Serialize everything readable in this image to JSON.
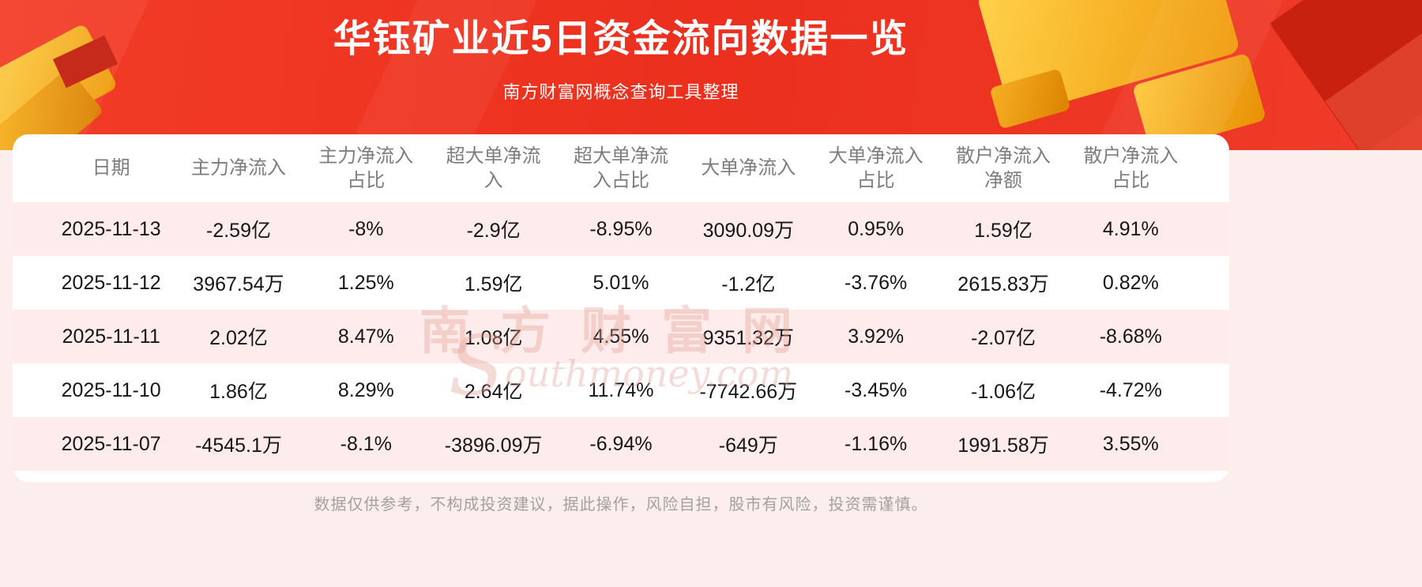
{
  "header": {
    "title": "华钰矿业近5日资金流向数据一览",
    "subtitle": "南方财富网概念查询工具整理"
  },
  "watermark": {
    "initial": "S",
    "cn": "南方财富网",
    "en": "outhmoney.com"
  },
  "table": {
    "headers": [
      "日期",
      "主力净流入",
      "主力净流入占比",
      "超大单净流入",
      "超大单净流入占比",
      "大单净流入",
      "大单净流入占比",
      "散户净流入净额",
      "散户净流入占比"
    ],
    "rows": [
      [
        "2025-11-13",
        "-2.59亿",
        "-8%",
        "-2.9亿",
        "-8.95%",
        "3090.09万",
        "0.95%",
        "1.59亿",
        "4.91%"
      ],
      [
        "2025-11-12",
        "3967.54万",
        "1.25%",
        "1.59亿",
        "5.01%",
        "-1.2亿",
        "-3.76%",
        "2615.83万",
        "0.82%"
      ],
      [
        "2025-11-11",
        "2.02亿",
        "8.47%",
        "1.08亿",
        "4.55%",
        "9351.32万",
        "3.92%",
        "-2.07亿",
        "-8.68%"
      ],
      [
        "2025-11-10",
        "1.86亿",
        "8.29%",
        "2.64亿",
        "11.74%",
        "-7742.66万",
        "-3.45%",
        "-1.06亿",
        "-4.72%"
      ],
      [
        "2025-11-07",
        "-4545.1万",
        "-8.1%",
        "-3896.09万",
        "-6.94%",
        "-649万",
        "-1.16%",
        "1991.58万",
        "3.55%"
      ]
    ]
  },
  "footer": {
    "disclaimer": "数据仅供参考，不构成投资建议，据此操作，风险自担，股市有风险，投资需谨慎。"
  },
  "colors": {
    "hero_red": "#ec2f1e",
    "stripe_pink": "#fdeceb",
    "page_pink": "#fceeec",
    "gold": "#ef9a0a"
  }
}
